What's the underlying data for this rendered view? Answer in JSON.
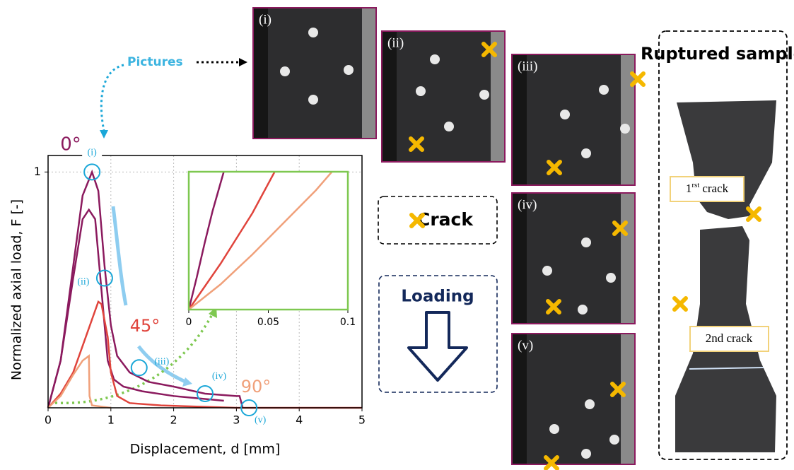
{
  "chart_data": [
    {
      "type": "line",
      "xlabel": "Displacement, d [mm]",
      "ylabel": "Normalized axial load, F [-]",
      "xlim": [
        0,
        5
      ],
      "ylim": [
        0,
        1.07
      ],
      "xticks": [
        0,
        1,
        2,
        3,
        4,
        5
      ],
      "yticks": [
        1
      ],
      "grid": true,
      "series": [
        {
          "name": "0°",
          "color": "#8b1a5e",
          "x": [
            0,
            0.2,
            0.4,
            0.55,
            0.7,
            0.8,
            0.9,
            1.0,
            1.1,
            1.3,
            1.6,
            2.0,
            2.5,
            3.0,
            3.05,
            3.1
          ],
          "values": [
            0,
            0.2,
            0.6,
            0.9,
            1.0,
            0.92,
            0.6,
            0.35,
            0.22,
            0.15,
            0.11,
            0.09,
            0.06,
            0.05,
            0.05,
            0
          ]
        },
        {
          "color": "#8b1a5e",
          "x": [
            0,
            0.2,
            0.4,
            0.55,
            0.65,
            0.75,
            0.85,
            0.95,
            1.05,
            1.2,
            1.5,
            2.0,
            2.8
          ],
          "values": [
            0,
            0.2,
            0.55,
            0.8,
            0.84,
            0.8,
            0.5,
            0.2,
            0.12,
            0.09,
            0.07,
            0.05,
            0.03
          ]
        },
        {
          "name": "45°",
          "color": "#e0443c",
          "x": [
            0,
            0.2,
            0.4,
            0.6,
            0.8,
            0.85,
            0.95,
            1.0,
            1.1,
            1.3,
            1.8,
            3,
            5
          ],
          "values": [
            0,
            0.06,
            0.15,
            0.3,
            0.45,
            0.44,
            0.3,
            0.15,
            0.05,
            0.02,
            0.01,
            0,
            0
          ]
        },
        {
          "name": "90°",
          "color": "#f0a07a",
          "x": [
            0,
            0.2,
            0.4,
            0.55,
            0.65,
            0.66,
            0.7,
            1.0
          ],
          "values": [
            0,
            0.05,
            0.14,
            0.2,
            0.22,
            0.05,
            0.01,
            0
          ]
        }
      ],
      "annotations": [
        {
          "label": "(i)",
          "x": 0.7,
          "y": 1.0
        },
        {
          "label": "(ii)",
          "x": 0.9,
          "y": 0.55
        },
        {
          "label": "(iii)",
          "x": 1.45,
          "y": 0.17
        },
        {
          "label": "(iv)",
          "x": 2.5,
          "y": 0.06
        },
        {
          "label": "(v)",
          "x": 3.2,
          "y": 0.0
        }
      ]
    },
    {
      "type": "line",
      "xlim": [
        0,
        0.1
      ],
      "ylim": [
        0,
        0.6
      ],
      "xticks": [
        0,
        0.05,
        0.1
      ],
      "series": [
        {
          "color": "#8b1a5e",
          "x": [
            0,
            0.005,
            0.01,
            0.015,
            0.022
          ],
          "values": [
            0,
            0.14,
            0.29,
            0.43,
            0.6
          ]
        },
        {
          "color": "#e0443c",
          "x": [
            0,
            0.01,
            0.02,
            0.03,
            0.04,
            0.054
          ],
          "values": [
            0,
            0.1,
            0.2,
            0.31,
            0.42,
            0.6
          ]
        },
        {
          "color": "#f0a07a",
          "x": [
            0,
            0.02,
            0.04,
            0.06,
            0.08,
            0.09
          ],
          "values": [
            0,
            0.11,
            0.24,
            0.38,
            0.52,
            0.6
          ]
        }
      ]
    }
  ],
  "pictures_label": "Pictures",
  "photos": [
    {
      "label": "(i)"
    },
    {
      "label": "(ii)"
    },
    {
      "label": "(iii)"
    },
    {
      "label": "(iv)"
    },
    {
      "label": "(v)"
    }
  ],
  "crack_legend": "Crack",
  "loading": "Loading",
  "sample": {
    "title": "Ruptured sample",
    "first_crack": [
      "1",
      "rst",
      "crack"
    ],
    "second_crack": "2nd crack"
  }
}
